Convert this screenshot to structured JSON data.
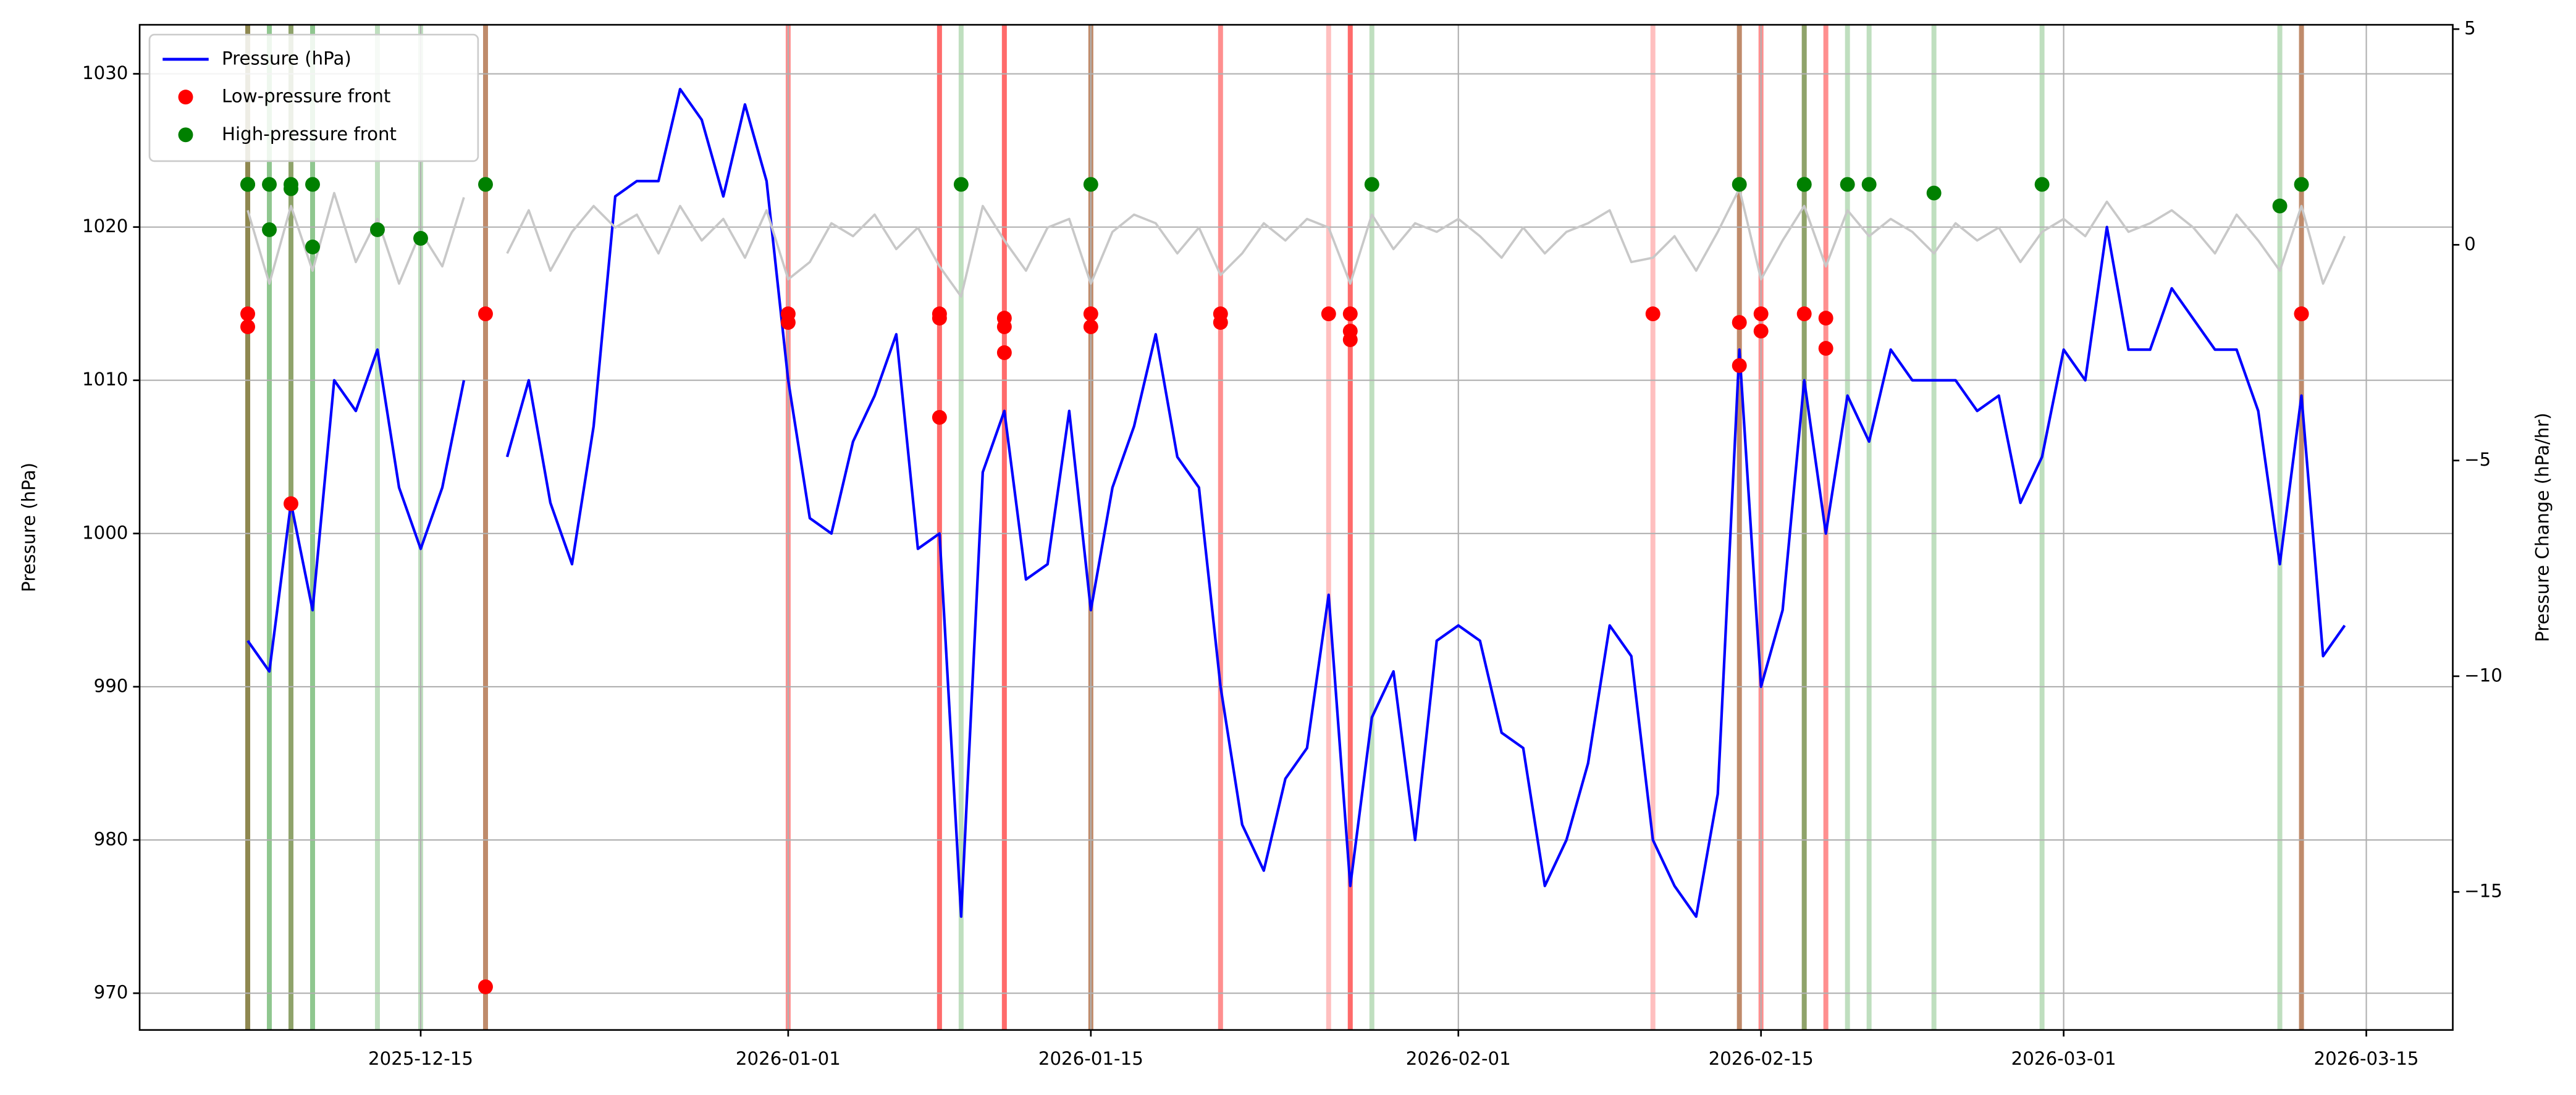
{
  "chart_data": {
    "type": "line",
    "xlabel": null,
    "ylabel": "Pressure (hPa)",
    "y2label": "Pressure Change (hPa/hr)",
    "xlim": [
      "2025-12-02",
      "2026-03-19"
    ],
    "xticks": [
      "2025-12-15",
      "2026-01-01",
      "2026-01-15",
      "2026-02-01",
      "2026-02-15",
      "2026-03-01",
      "2026-03-15"
    ],
    "ylim": [
      967.6,
      1033.2
    ],
    "yticks": [
      970,
      980,
      990,
      1000,
      1010,
      1020,
      1030
    ],
    "y2lim": [
      -18.2,
      5.1
    ],
    "y2ticks": [
      {
        "value": -15,
        "label": "−15"
      },
      {
        "value": -10,
        "label": "−10"
      },
      {
        "value": -5,
        "label": "−5"
      },
      0,
      5
    ],
    "grid": true,
    "legend": "upper left",
    "series": [
      {
        "name": "Pressure (hPa)",
        "type": "line",
        "color": "#0000ff",
        "x": [
          "2025-12-07",
          "2025-12-08",
          "2025-12-09",
          "2025-12-10",
          "2025-12-11",
          "2025-12-12",
          "2025-12-13",
          "2025-12-14",
          "2025-12-15",
          "2025-12-16",
          "2025-12-17",
          "2025-12-18",
          "2025-12-19",
          "2025-12-20",
          "2025-12-21",
          "2025-12-22",
          "2025-12-23",
          "2025-12-24",
          "2025-12-25",
          "2025-12-26",
          "2025-12-27",
          "2025-12-28",
          "2025-12-29",
          "2025-12-30",
          "2025-12-31",
          "2026-01-01",
          "2026-01-02",
          "2026-01-03",
          "2026-01-04",
          "2026-01-05",
          "2026-01-06",
          "2026-01-07",
          "2026-01-08",
          "2026-01-09",
          "2026-01-10",
          "2026-01-11",
          "2026-01-12",
          "2026-01-13",
          "2026-01-14",
          "2026-01-15",
          "2026-01-16",
          "2026-01-17",
          "2026-01-18",
          "2026-01-19",
          "2026-01-20",
          "2026-01-21",
          "2026-01-22",
          "2026-01-23",
          "2026-01-24",
          "2026-01-25",
          "2026-01-26",
          "2026-01-27",
          "2026-01-28",
          "2026-01-29",
          "2026-01-30",
          "2026-01-31",
          "2026-02-01",
          "2026-02-02",
          "2026-02-03",
          "2026-02-04",
          "2026-02-05",
          "2026-02-06",
          "2026-02-07",
          "2026-02-08",
          "2026-02-09",
          "2026-02-10",
          "2026-02-11",
          "2026-02-12",
          "2026-02-13",
          "2026-02-14",
          "2026-02-15",
          "2026-02-16",
          "2026-02-17",
          "2026-02-18",
          "2026-02-19",
          "2026-02-20",
          "2026-02-21",
          "2026-02-22",
          "2026-02-23",
          "2026-02-24",
          "2026-02-25",
          "2026-02-26",
          "2026-02-27",
          "2026-02-28",
          "2026-03-01",
          "2026-03-02",
          "2026-03-03",
          "2026-03-04",
          "2026-03-05",
          "2026-03-06",
          "2026-03-07",
          "2026-03-08",
          "2026-03-09",
          "2026-03-10",
          "2026-03-11",
          "2026-03-12",
          "2026-03-13",
          "2026-03-14"
        ],
        "values": [
          993,
          991,
          1002,
          995,
          1010,
          1008,
          1012,
          1003,
          999,
          1003,
          1010,
          null,
          1005,
          1010,
          1002,
          998,
          1007,
          1022,
          1023,
          1023,
          1029,
          1027,
          1022,
          1028,
          1023,
          1010,
          1001,
          1000,
          1006,
          1009,
          1013,
          999,
          1000,
          975,
          1004,
          1008,
          997,
          998,
          1008,
          995,
          1003,
          1007,
          1013,
          1005,
          1003,
          990,
          981,
          978,
          984,
          986,
          996,
          977,
          988,
          991,
          980,
          993,
          994,
          993,
          987,
          986,
          977,
          980,
          985,
          994,
          992,
          980,
          977,
          975,
          983,
          1012,
          990,
          995,
          1010,
          1000,
          1009,
          1006,
          1012,
          1010,
          1010,
          1010,
          1008,
          1009,
          1002,
          1005,
          1012,
          1010,
          1020,
          1012,
          1012,
          1016,
          1014,
          1012,
          1012,
          1008,
          998,
          1009,
          992,
          994
        ]
      },
      {
        "type": "line",
        "color": "#c8c8c8",
        "axis": "y2",
        "x": [
          "2025-12-07",
          "2025-12-08",
          "2025-12-09",
          "2025-12-10",
          "2025-12-11",
          "2025-12-12",
          "2025-12-13",
          "2025-12-14",
          "2025-12-15",
          "2025-12-16",
          "2025-12-17",
          "2025-12-18",
          "2025-12-19",
          "2025-12-20",
          "2025-12-21",
          "2025-12-22",
          "2025-12-23",
          "2025-12-24",
          "2025-12-25",
          "2025-12-26",
          "2025-12-27",
          "2025-12-28",
          "2025-12-29",
          "2025-12-30",
          "2025-12-31",
          "2026-01-01",
          "2026-01-02",
          "2026-01-03",
          "2026-01-04",
          "2026-01-05",
          "2026-01-06",
          "2026-01-07",
          "2026-01-08",
          "2026-01-09",
          "2026-01-10",
          "2026-01-11",
          "2026-01-12",
          "2026-01-13",
          "2026-01-14",
          "2026-01-15",
          "2026-01-16",
          "2026-01-17",
          "2026-01-18",
          "2026-01-19",
          "2026-01-20",
          "2026-01-21",
          "2026-01-22",
          "2026-01-23",
          "2026-01-24",
          "2026-01-25",
          "2026-01-26",
          "2026-01-27",
          "2026-01-28",
          "2026-01-29",
          "2026-01-30",
          "2026-01-31",
          "2026-02-01",
          "2026-02-02",
          "2026-02-03",
          "2026-02-04",
          "2026-02-05",
          "2026-02-06",
          "2026-02-07",
          "2026-02-08",
          "2026-02-09",
          "2026-02-10",
          "2026-02-11",
          "2026-02-12",
          "2026-02-13",
          "2026-02-14",
          "2026-02-15",
          "2026-02-16",
          "2026-02-17",
          "2026-02-18",
          "2026-02-19",
          "2026-02-20",
          "2026-02-21",
          "2026-02-22",
          "2026-02-23",
          "2026-02-24",
          "2026-02-25",
          "2026-02-26",
          "2026-02-27",
          "2026-02-28",
          "2026-03-01",
          "2026-03-02",
          "2026-03-03",
          "2026-03-04",
          "2026-03-05",
          "2026-03-06",
          "2026-03-07",
          "2026-03-08",
          "2026-03-09",
          "2026-03-10",
          "2026-03-11",
          "2026-03-12",
          "2026-03-13",
          "2026-03-14"
        ],
        "values": [
          0.8,
          -0.9,
          0.9,
          -0.6,
          1.2,
          -0.4,
          0.6,
          -0.9,
          0.3,
          -0.5,
          1.1,
          null,
          -0.2,
          0.8,
          -0.6,
          0.3,
          0.9,
          0.4,
          0.7,
          -0.2,
          0.9,
          0.1,
          0.6,
          -0.3,
          0.8,
          -0.8,
          -0.4,
          0.5,
          0.2,
          0.7,
          -0.1,
          0.4,
          -0.5,
          -1.2,
          0.9,
          0.1,
          -0.6,
          0.4,
          0.6,
          -0.9,
          0.3,
          0.7,
          0.5,
          -0.2,
          0.4,
          -0.7,
          -0.2,
          0.5,
          0.1,
          0.6,
          0.4,
          -0.9,
          0.7,
          -0.1,
          0.5,
          0.3,
          0.6,
          0.2,
          -0.3,
          0.4,
          -0.2,
          0.3,
          0.5,
          0.8,
          -0.4,
          -0.3,
          0.2,
          -0.6,
          0.3,
          1.3,
          -0.8,
          0.1,
          0.9,
          -0.5,
          0.8,
          0.2,
          0.6,
          0.3,
          -0.2,
          0.5,
          0.1,
          0.4,
          -0.4,
          0.3,
          0.6,
          0.2,
          1.0,
          0.3,
          0.5,
          0.8,
          0.4,
          -0.2,
          0.7,
          0.1,
          -0.6,
          0.9,
          -0.9,
          0.2
        ]
      },
      {
        "name": "Low-pressure front",
        "type": "scatter",
        "color": "#ff0000",
        "axis": "y2",
        "x": [
          "2025-12-07",
          "2025-12-07",
          "2025-12-09",
          "2025-12-18",
          "2025-12-18",
          "2026-01-01",
          "2026-01-01",
          "2026-01-08",
          "2026-01-08",
          "2026-01-08",
          "2026-01-11",
          "2026-01-11",
          "2026-01-11",
          "2026-01-15",
          "2026-01-15",
          "2026-01-21",
          "2026-01-21",
          "2026-01-26",
          "2026-01-27",
          "2026-01-27",
          "2026-01-27",
          "2026-02-10",
          "2026-02-14",
          "2026-02-14",
          "2026-02-15",
          "2026-02-15",
          "2026-02-17",
          "2026-02-18",
          "2026-02-18",
          "2026-03-12",
          "2026-03-12"
        ],
        "values": [
          -1.6,
          -1.9,
          -6.0,
          -1.6,
          -17.2,
          -1.6,
          -1.8,
          -1.6,
          -1.7,
          -4.0,
          -1.7,
          -1.9,
          -2.5,
          -1.6,
          -1.9,
          -1.6,
          -1.8,
          -1.6,
          -1.6,
          -2.0,
          -2.2,
          -1.6,
          -1.8,
          -2.8,
          -1.6,
          -2.0,
          -1.6,
          -1.7,
          -2.4,
          -1.6,
          -1.6
        ]
      },
      {
        "name": "High-pressure front",
        "type": "scatter",
        "color": "#008000",
        "axis": "y2",
        "x": [
          "2025-12-07",
          "2025-12-07",
          "2025-12-08",
          "2025-12-08",
          "2025-12-09",
          "2025-12-09",
          "2025-12-10",
          "2025-12-10",
          "2025-12-13",
          "2025-12-15",
          "2025-12-18",
          "2026-01-09",
          "2026-01-15",
          "2026-01-28",
          "2026-02-14",
          "2026-02-17",
          "2026-02-17",
          "2026-02-19",
          "2026-02-20",
          "2026-02-23",
          "2026-02-28",
          "2026-03-11",
          "2026-03-12"
        ],
        "values": [
          1.4,
          1.4,
          1.4,
          0.35,
          1.4,
          1.3,
          -0.05,
          1.4,
          0.35,
          0.15,
          1.4,
          1.4,
          1.4,
          1.4,
          1.4,
          1.4,
          1.4,
          1.4,
          1.4,
          1.2,
          1.4,
          0.9,
          1.4
        ]
      }
    ]
  }
}
